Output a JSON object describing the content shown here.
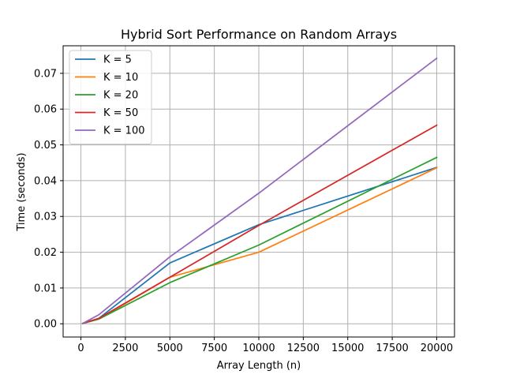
{
  "chart_data": {
    "type": "line",
    "title": "Hybrid Sort Performance on Random Arrays",
    "xlabel": "Array Length (n)",
    "ylabel": "Time (seconds)",
    "xlim": [
      -1000,
      21000
    ],
    "ylim": [
      -0.0037,
      0.0777
    ],
    "xticks": [
      0,
      2500,
      5000,
      7500,
      10000,
      12500,
      15000,
      17500,
      20000
    ],
    "xtick_labels": [
      "0",
      "2500",
      "5000",
      "7500",
      "10000",
      "12500",
      "15000",
      "17500",
      "20000"
    ],
    "yticks": [
      0.0,
      0.01,
      0.02,
      0.03,
      0.04,
      0.05,
      0.06,
      0.07
    ],
    "ytick_labels": [
      "0.00",
      "0.01",
      "0.02",
      "0.03",
      "0.04",
      "0.05",
      "0.06",
      "0.07"
    ],
    "grid": true,
    "legend_position": "top-left",
    "x": [
      100,
      1000,
      5000,
      10000,
      20000
    ],
    "series": [
      {
        "name": "K = 5",
        "color": "#1f77b4",
        "values": [
          0.0001,
          0.0015,
          0.017,
          0.0277,
          0.0437
        ]
      },
      {
        "name": "K = 10",
        "color": "#ff7f0e",
        "values": [
          0.0001,
          0.0013,
          0.013,
          0.02,
          0.0436
        ]
      },
      {
        "name": "K = 20",
        "color": "#2ca02c",
        "values": [
          0.0001,
          0.0013,
          0.0115,
          0.022,
          0.0465
        ]
      },
      {
        "name": "K = 50",
        "color": "#d62728",
        "values": [
          0.0001,
          0.0015,
          0.013,
          0.0275,
          0.0555
        ]
      },
      {
        "name": "K = 100",
        "color": "#9467bd",
        "values": [
          0.0001,
          0.0025,
          0.0187,
          0.0365,
          0.0742
        ]
      }
    ]
  }
}
